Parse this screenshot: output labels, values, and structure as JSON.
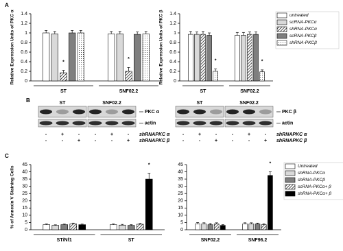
{
  "chart_data": [
    {
      "type": "bar",
      "panel": "A",
      "ylabel": "Relative Expression Units of PKC α",
      "groups": [
        "ST",
        "SNF02.2"
      ],
      "ylim": [
        0,
        1.4
      ],
      "yticks": [
        0,
        0.2,
        0.4,
        0.6,
        0.8,
        1,
        1.2,
        1.4
      ],
      "series": [
        {
          "color": "#ffffff",
          "values": [
            1.0,
            0.98
          ],
          "errors": [
            0.05,
            0.05
          ]
        },
        {
          "color": "#d9d9d9",
          "values": [
            0.98,
            0.98
          ],
          "errors": [
            0.05,
            0.05
          ]
        },
        {
          "color": "#ffffff",
          "pattern": "hatch",
          "values": [
            0.17,
            0.2
          ],
          "errors": [
            0.05,
            0.08
          ],
          "significance": [
            "*",
            "*"
          ]
        },
        {
          "color": "#7f7f7f",
          "values": [
            1.0,
            0.97
          ],
          "errors": [
            0.05,
            0.05
          ]
        },
        {
          "color": "#ffffff",
          "pattern": "dots",
          "values": [
            1.0,
            0.98
          ],
          "errors": [
            0.05,
            0.05
          ]
        }
      ]
    },
    {
      "type": "bar",
      "ylabel": "Relative Expression Units of PKC β",
      "groups": [
        "ST",
        "SNF02.2"
      ],
      "ylim": [
        0,
        1.4
      ],
      "yticks": [
        0,
        0.2,
        0.4,
        0.6,
        0.8,
        1,
        1.2,
        1.4
      ],
      "legend": "right",
      "series": [
        {
          "name": "untreated",
          "color": "#ffffff",
          "values": [
            0.97,
            0.95
          ],
          "errors": [
            0.06,
            0.06
          ]
        },
        {
          "name": "scRNA-PKCα",
          "color": "#d9d9d9",
          "values": [
            0.97,
            0.95
          ],
          "errors": [
            0.05,
            0.06
          ]
        },
        {
          "name": "shRNA-PKCα",
          "color": "#ffffff",
          "pattern": "hatch",
          "values": [
            0.97,
            0.97
          ],
          "errors": [
            0.06,
            0.05
          ]
        },
        {
          "name": "scRNA-PKCβ",
          "color": "#7f7f7f",
          "values": [
            0.95,
            0.97
          ],
          "errors": [
            0.05,
            0.05
          ]
        },
        {
          "name": "shRNA-PKCβ",
          "color": "#ffffff",
          "pattern": "dots",
          "values": [
            0.2,
            0.19
          ],
          "errors": [
            0.05,
            0.04
          ],
          "significance": [
            "*",
            "*"
          ]
        }
      ]
    },
    {
      "type": "bar",
      "panel": "C",
      "ylabel": "% of Annexin V Staining Cells",
      "groups": [
        "ST/Nf1",
        "ST"
      ],
      "ylim": [
        0,
        45
      ],
      "yticks": [
        0,
        5,
        10,
        15,
        20,
        25,
        30,
        35,
        40,
        45
      ],
      "series": [
        {
          "color": "#ffffff",
          "values": [
            3.5,
            3.5
          ],
          "errors": [
            0.5,
            0.5
          ]
        },
        {
          "color": "#d9d9d9",
          "values": [
            3,
            3.2
          ],
          "errors": [
            0.4,
            0.5
          ]
        },
        {
          "color": "#7f7f7f",
          "values": [
            3.5,
            3
          ],
          "errors": [
            0.4,
            0.5
          ]
        },
        {
          "color": "#ffffff",
          "pattern": "hatch",
          "values": [
            4,
            3.8
          ],
          "errors": [
            0.6,
            0.6
          ]
        },
        {
          "color": "#000000",
          "values": [
            3.5,
            35
          ],
          "errors": [
            0.4,
            4
          ],
          "significance": [
            null,
            "*"
          ]
        }
      ]
    },
    {
      "type": "bar",
      "groups": [
        "SNF02.2",
        "SNF96.2"
      ],
      "ylim": [
        0,
        45
      ],
      "yticks": [
        0,
        5,
        10,
        15,
        20,
        25,
        30,
        35,
        40,
        45
      ],
      "legend": "right",
      "series": [
        {
          "name": "Untreated",
          "color": "#ffffff",
          "values": [
            4,
            4
          ],
          "errors": [
            1,
            0.8
          ]
        },
        {
          "name": "shRNA-PKCα",
          "color": "#d9d9d9",
          "values": [
            4,
            4
          ],
          "errors": [
            0.8,
            0.8
          ]
        },
        {
          "name": "shRNA-PKCβ",
          "color": "#7f7f7f",
          "values": [
            3.5,
            4
          ],
          "errors": [
            0.8,
            0.6
          ]
        },
        {
          "name": "scRNA-PKCα+ β",
          "color": "#ffffff",
          "pattern": "hatch",
          "values": [
            4,
            3.5
          ],
          "errors": [
            0.8,
            0.6
          ]
        },
        {
          "name": "shRNA-PKCα+ β",
          "color": "#000000",
          "values": [
            3,
            37.5
          ],
          "errors": [
            0.5,
            2.5
          ],
          "significance": [
            null,
            "*"
          ]
        }
      ]
    }
  ],
  "blot": {
    "panel": "B",
    "panels": [
      {
        "groups": [
          "ST",
          "SNF02.2"
        ],
        "bands": [
          "PKC α",
          "actin"
        ]
      },
      {
        "groups": [
          "ST",
          "SNF02.2"
        ],
        "bands": [
          "PKC β",
          "actin"
        ]
      }
    ],
    "treatments": [
      {
        "name": "shRNAPKC α",
        "signs": [
          "-",
          "+",
          "-",
          "-",
          "+",
          "-"
        ]
      },
      {
        "name": "shRNAPKC β",
        "signs": [
          "-",
          "-",
          "+",
          "-",
          "-",
          "+"
        ]
      }
    ]
  }
}
